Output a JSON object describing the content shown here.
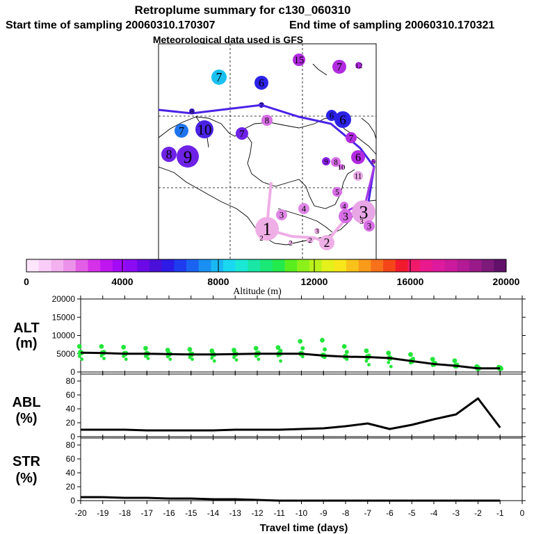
{
  "header": {
    "title": "Retroplume summary for c130_060310",
    "start": "Start time of sampling 20060310.170307",
    "end": "End time of sampling 20060310.170321",
    "met": "Meteorological data used is GFS"
  },
  "colors": {
    "scale": [
      "#fde6fc",
      "#f9cdf7",
      "#f3b1f0",
      "#ec92ea",
      "#e35ee6",
      "#d531e8",
      "#bf16f0",
      "#a30af5",
      "#8a0bf4",
      "#6b0ae6",
      "#4a0fd8",
      "#2d1ae6",
      "#1f3bf0",
      "#1a63f2",
      "#1a8ff3",
      "#1ab8f2",
      "#1ad8ef",
      "#1ae8d4",
      "#1ae6a6",
      "#1ae877",
      "#23ea4d",
      "#5aee1f",
      "#8cf11a",
      "#baf11a",
      "#e4f11a",
      "#f7e61a",
      "#f9c21a",
      "#f99a1a",
      "#f7701a",
      "#f5461a",
      "#f21a2e",
      "#f01a6b",
      "#ea1a8e",
      "#de1a9e",
      "#cc1a9c",
      "#b41a94",
      "#9a1a8a",
      "#7d1a7a",
      "#62106a"
    ],
    "ground_points": "#22e63a",
    "route_dark": "#4a22e6",
    "route_purple": "#a63ae8",
    "route_pink": "#efaee6"
  },
  "colorbar": {
    "ticks": [
      "0",
      "4000",
      "8000",
      "12000",
      "16000",
      "20000"
    ],
    "label": "Altitude (m)"
  },
  "map": {
    "points": [
      {
        "label": "15",
        "color": "#b12be0"
      },
      {
        "label": "7",
        "color": "#b12be0"
      },
      {
        "label": "12",
        "color": "#b12be0"
      },
      {
        "label": "7",
        "color": "#1ac0f0"
      },
      {
        "label": "6",
        "color": "#2b22e6"
      },
      {
        "label": "8",
        "color": "#4a22e6"
      },
      {
        "label": "7",
        "color": "#4a22e6"
      },
      {
        "label": "6",
        "color": "#2b22e6"
      },
      {
        "label": "6",
        "color": "#2b22e6"
      },
      {
        "label": "7",
        "color": "#1f74ee"
      },
      {
        "label": "10",
        "color": "#4a22e6"
      },
      {
        "label": "7",
        "color": "#6d22e6"
      },
      {
        "label": "8",
        "color": "#d86ee6"
      },
      {
        "label": "7",
        "color": "#b12be0"
      },
      {
        "label": "8",
        "color": "#6d22e6"
      },
      {
        "label": "9",
        "color": "#6d22e6"
      },
      {
        "label": "9",
        "color": "#8a22e6"
      },
      {
        "label": "8",
        "color": "#d86ee6"
      },
      {
        "label": "10",
        "color": "#d86ee6"
      },
      {
        "label": "6",
        "color": "#b12be0"
      },
      {
        "label": "5",
        "color": "#b12be0"
      },
      {
        "label": "11",
        "color": "#e8a6e6"
      },
      {
        "label": "5",
        "color": "#d86ee6"
      },
      {
        "label": "4",
        "color": "#e087e6"
      },
      {
        "label": "4",
        "color": "#d86ee6"
      },
      {
        "label": "3",
        "color": "#e087e6"
      },
      {
        "label": "3",
        "color": "#d86ee6"
      },
      {
        "label": "3",
        "color": "#e8a6e6"
      },
      {
        "label": "1",
        "color": "#efaee6"
      },
      {
        "label": "2",
        "color": "#efaee6"
      },
      {
        "label": "2",
        "color": "#efaee6"
      },
      {
        "label": "2",
        "color": "#efaee6"
      },
      {
        "label": "2",
        "color": "#efaee6"
      },
      {
        "label": "3",
        "color": "#efaee6"
      },
      {
        "label": "3",
        "color": "#efaee6"
      },
      {
        "label": "3",
        "color": "#d86ee6"
      }
    ]
  },
  "chart_data": [
    {
      "type": "line",
      "title": "ALT (m)",
      "xlabel": "Travel time (days)",
      "ylabel": "ALT (m)",
      "x": [
        -20,
        -19,
        -18,
        -17,
        -16,
        -15,
        -14,
        -13,
        -12,
        -11,
        -10,
        -9,
        -8,
        -7,
        -6,
        -5,
        -4,
        -3,
        -2,
        -1
      ],
      "values": [
        5300,
        5200,
        5000,
        5000,
        4900,
        4800,
        4800,
        4900,
        5000,
        5000,
        5000,
        4500,
        4200,
        4100,
        3800,
        3000,
        2200,
        1700,
        1000,
        1000
      ],
      "scatter_groups": [
        [
          7000,
          5200,
          4300,
          3500
        ],
        [
          7000,
          5500,
          4400,
          3700
        ],
        [
          6800,
          5200,
          4300,
          3500
        ],
        [
          6500,
          5000,
          4300,
          3700
        ],
        [
          6000,
          5000,
          4200,
          3500
        ],
        [
          6200,
          5000,
          4000,
          3500
        ],
        [
          5800,
          4700,
          3800,
          3000
        ],
        [
          6000,
          4900,
          4000,
          3300
        ],
        [
          6500,
          5300,
          4300,
          3500
        ],
        [
          6700,
          5800,
          4500,
          3000
        ],
        [
          8400,
          6500,
          5200,
          4200
        ],
        [
          8700,
          6200,
          4800,
          4000
        ],
        [
          7000,
          5500,
          4200,
          3500
        ],
        [
          5800,
          4500,
          3000,
          2000
        ],
        [
          5200,
          3800,
          2600,
          1500
        ],
        [
          4800,
          3600,
          2500
        ],
        [
          3500,
          2500,
          1800
        ],
        [
          3100,
          2000,
          1500
        ],
        [
          1500,
          1000
        ],
        [
          1300,
          900
        ]
      ],
      "ylim": [
        0,
        20000
      ],
      "yticks": [
        "0",
        "5000",
        "10000",
        "15000",
        "20000"
      ]
    },
    {
      "type": "line",
      "title": "ABL (%)",
      "ylabel": "ABL (%)",
      "x": [
        -20,
        -19,
        -18,
        -17,
        -16,
        -15,
        -14,
        -13,
        -12,
        -11,
        -10,
        -9,
        -8,
        -7,
        -6,
        -5,
        -4,
        -3,
        -2,
        -1
      ],
      "values": [
        10,
        10,
        10,
        9,
        9,
        9,
        9,
        10,
        10,
        10,
        11,
        12,
        15,
        19,
        11,
        17,
        25,
        32,
        55,
        13
      ],
      "ylim": [
        0,
        90
      ],
      "yticks": [
        "0",
        "20",
        "40",
        "60",
        "80"
      ]
    },
    {
      "type": "line",
      "title": "STR (%)",
      "ylabel": "STR (%)",
      "x": [
        -20,
        -19,
        -18,
        -17,
        -16,
        -15,
        -14,
        -13,
        -12,
        -11,
        -10,
        -9,
        -8,
        -7,
        -6,
        -5,
        -4,
        -3,
        -2,
        -1
      ],
      "values": [
        5,
        5,
        4,
        4,
        3,
        3,
        2,
        2,
        1,
        0,
        0,
        0,
        0,
        0,
        0,
        0,
        0,
        0,
        0,
        0
      ],
      "ylim": [
        0,
        90
      ],
      "yticks": [
        "0",
        "20",
        "40",
        "60",
        "80"
      ],
      "xticks": [
        "-20",
        "-19",
        "-18",
        "-17",
        "-16",
        "-15",
        "-14",
        "-13",
        "-12",
        "-11",
        "-10",
        "-9",
        "-8",
        "-7",
        "-6",
        "-5",
        "-4",
        "-3",
        "-2",
        "-1",
        "0"
      ]
    }
  ],
  "panels": {
    "alt": {
      "name": "ALT",
      "unit": "(m)"
    },
    "abl": {
      "name": "ABL",
      "unit": "(%)"
    },
    "str": {
      "name": "STR",
      "unit": "(%)"
    }
  }
}
